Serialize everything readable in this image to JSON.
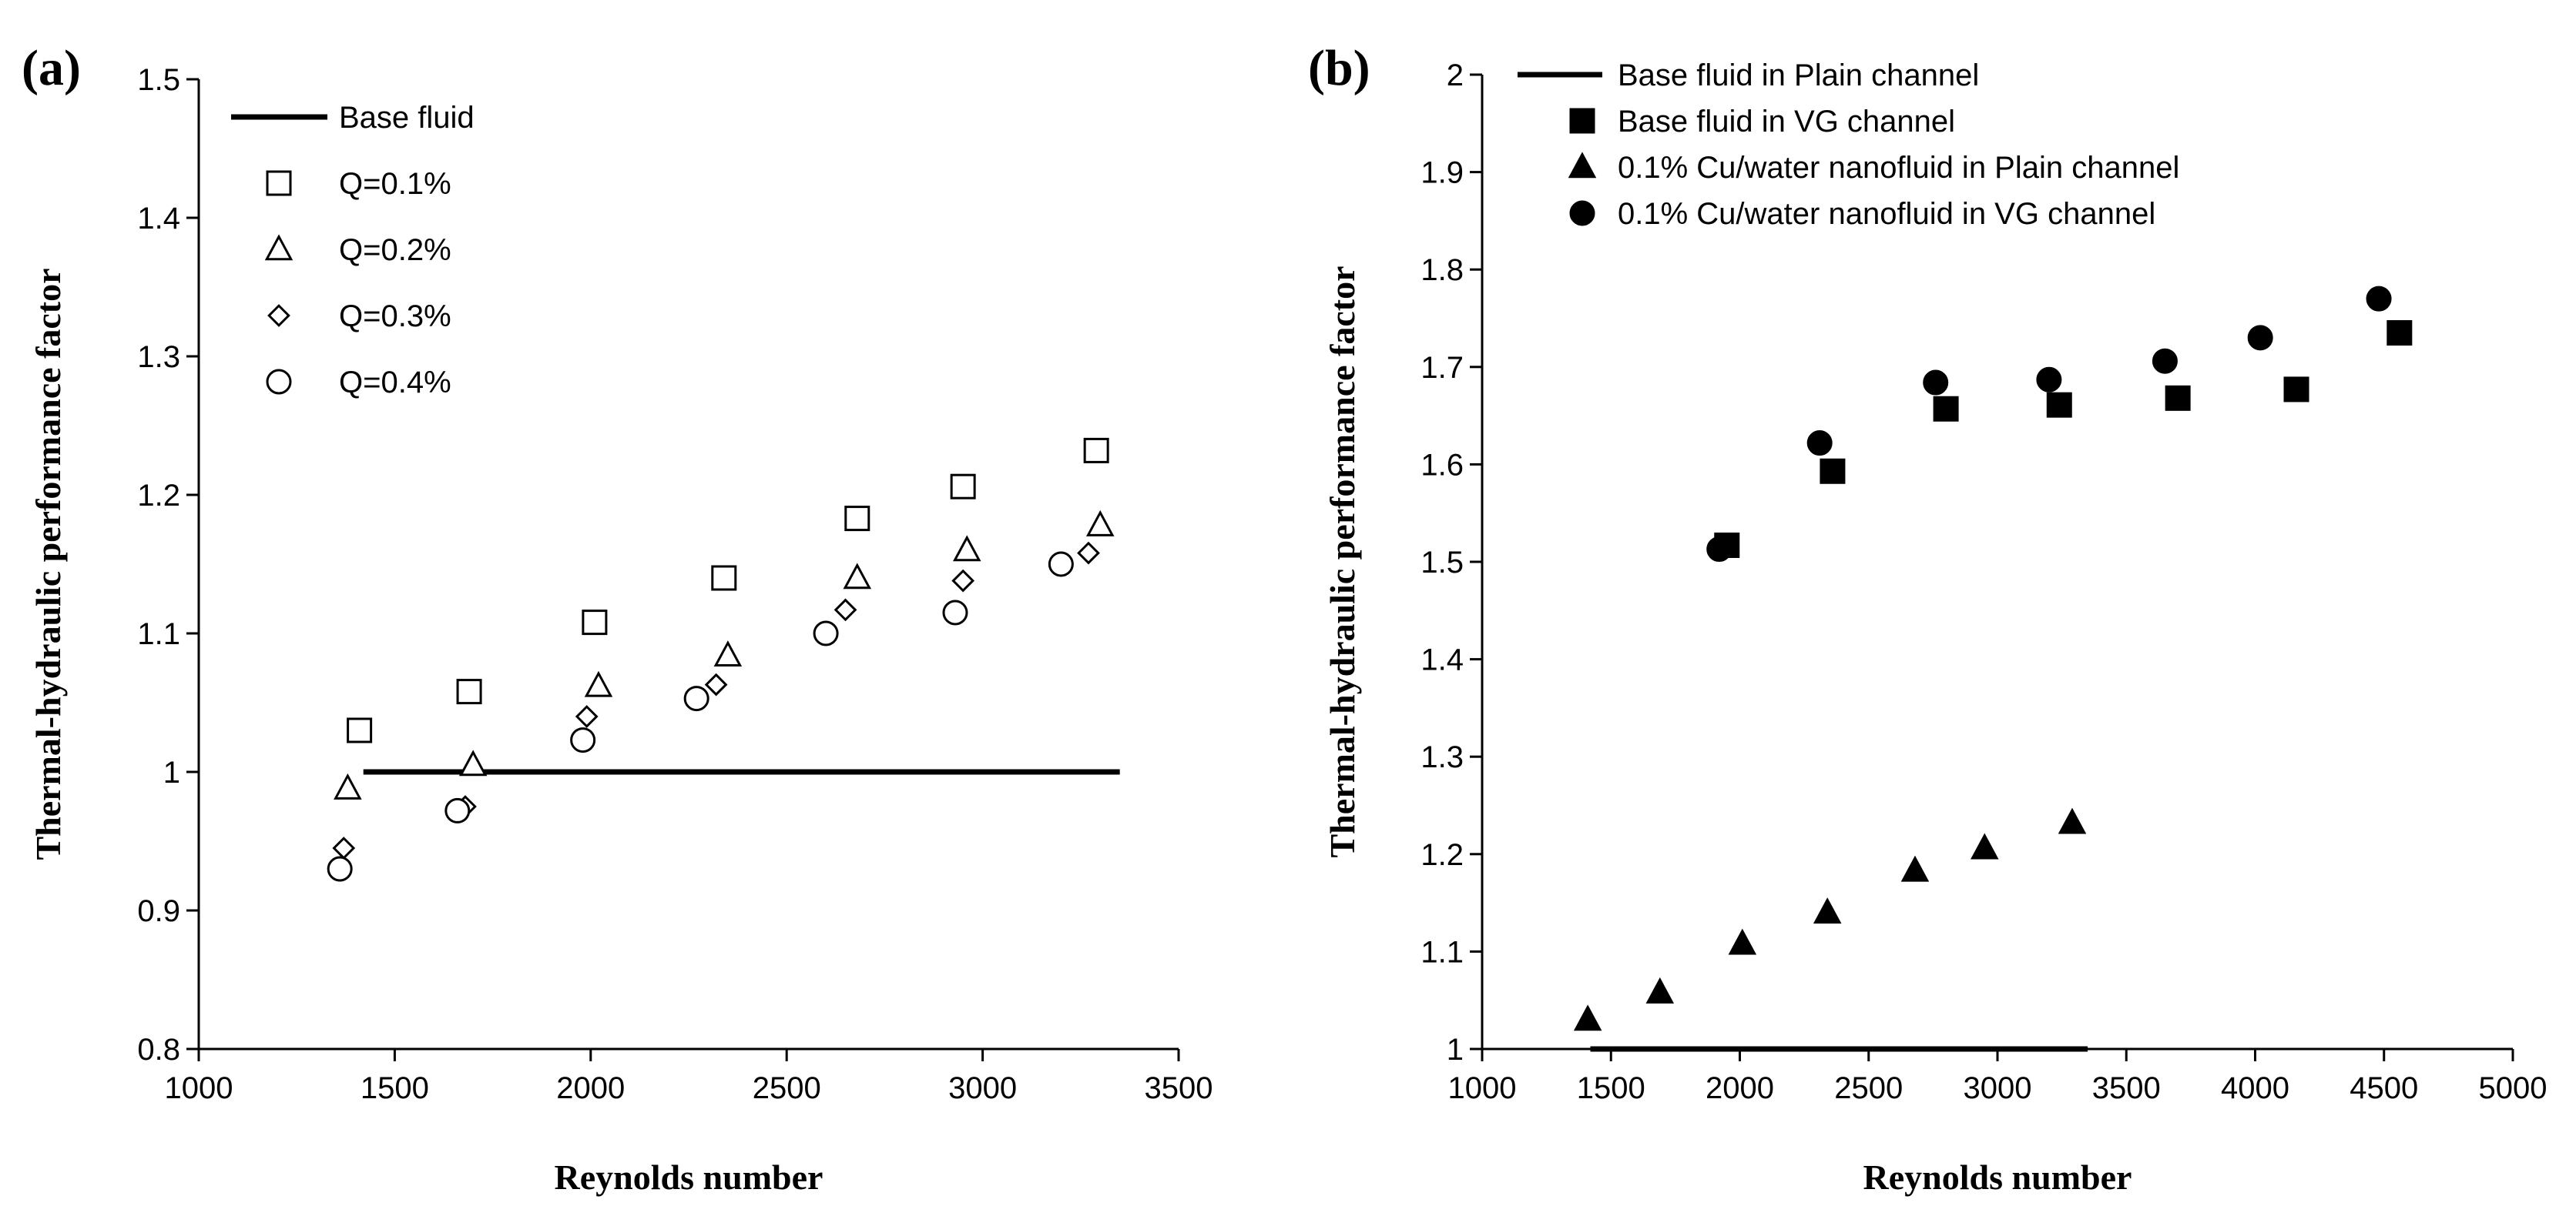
{
  "chart_data": [
    {
      "panel_label": "(a)",
      "type": "scatter",
      "xlabel": "Reynolds number",
      "ylabel": "Thermal-hydraulic performance factor",
      "xlim": [
        1000,
        3500
      ],
      "ylim": [
        0.8,
        1.5
      ],
      "xticks": [
        "1000",
        "1500",
        "2000",
        "2500",
        "3000",
        "3500"
      ],
      "yticks": [
        "0.8",
        "0.9",
        "1",
        "1.1",
        "1.2",
        "1.3",
        "1.4",
        "1.5"
      ],
      "grid": false,
      "legend_position": "top-left",
      "series": [
        {
          "name": "Base fluid",
          "marker": "line",
          "x": [
            1420,
            3350
          ],
          "y": [
            1.0,
            1.0
          ]
        },
        {
          "name": "Q=0.1%",
          "marker": "open-square",
          "x": [
            1410,
            1690,
            2010,
            2340,
            2680,
            2950,
            3290
          ],
          "y": [
            1.03,
            1.058,
            1.108,
            1.14,
            1.183,
            1.206,
            1.232
          ]
        },
        {
          "name": "Q=0.2%",
          "marker": "open-triangle",
          "x": [
            1380,
            1700,
            2020,
            2350,
            2680,
            2960,
            3300
          ],
          "y": [
            0.988,
            1.005,
            1.062,
            1.084,
            1.14,
            1.16,
            1.178
          ]
        },
        {
          "name": "Q=0.3%",
          "marker": "open-diamond",
          "x": [
            1370,
            1680,
            1990,
            2320,
            2650,
            2950,
            3270
          ],
          "y": [
            0.945,
            0.975,
            1.04,
            1.063,
            1.117,
            1.138,
            1.158
          ]
        },
        {
          "name": "Q=0.4%",
          "marker": "open-circle",
          "x": [
            1360,
            1660,
            1980,
            2270,
            2600,
            2930,
            3200
          ],
          "y": [
            0.93,
            0.972,
            1.023,
            1.053,
            1.1,
            1.115,
            1.15
          ]
        }
      ]
    },
    {
      "panel_label": "(b)",
      "type": "scatter",
      "xlabel": "Reynolds number",
      "ylabel": "Thermal-hydraulic performance factor",
      "xlim": [
        1000,
        5000
      ],
      "ylim": [
        1,
        2
      ],
      "xticks": [
        "1000",
        "1500",
        "2000",
        "2500",
        "3000",
        "3500",
        "4000",
        "4500",
        "5000"
      ],
      "yticks": [
        "1",
        "1.1",
        "1.2",
        "1.3",
        "1.4",
        "1.5",
        "1.6",
        "1.7",
        "1.8",
        "1.9",
        "2"
      ],
      "grid": false,
      "legend_position": "top-left",
      "series": [
        {
          "name": "Base fluid in Plain channel",
          "marker": "line",
          "x": [
            1420,
            3350
          ],
          "y": [
            1.0,
            1.0
          ]
        },
        {
          "name": "Base fluid in VG channel",
          "marker": "filled-square",
          "x": [
            1950,
            2360,
            2800,
            3240,
            3700,
            4160,
            4560
          ],
          "y": [
            1.517,
            1.593,
            1.657,
            1.661,
            1.668,
            1.677,
            1.735
          ]
        },
        {
          "name": "0.1% Cu/water nanofluid in Plain channel",
          "marker": "filled-triangle",
          "x": [
            1410,
            1690,
            2010,
            2340,
            2680,
            2950,
            3290
          ],
          "y": [
            1.03,
            1.058,
            1.108,
            1.14,
            1.183,
            1.206,
            1.232
          ]
        },
        {
          "name": "0.1% Cu/water nanofluid in VG channel",
          "marker": "filled-circle",
          "x": [
            1920,
            2310,
            2760,
            3200,
            3650,
            4020,
            4480
          ],
          "y": [
            1.513,
            1.622,
            1.684,
            1.687,
            1.706,
            1.73,
            1.77
          ]
        }
      ]
    }
  ]
}
